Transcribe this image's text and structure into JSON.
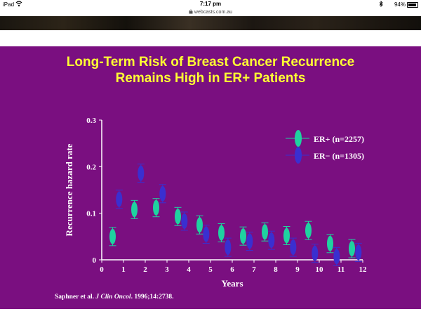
{
  "statusbar": {
    "device": "iPad",
    "time": "7:17 pm",
    "battery": "94%",
    "wifi_icon": "wifi-icon",
    "bluetooth_icon": "bluetooth-icon",
    "battery_icon": "battery-icon"
  },
  "browser": {
    "url": "webcasts.com.au",
    "lock_icon": "lock-icon"
  },
  "slide": {
    "title_line1": "Long-Term Risk of Breast Cancer Recurrence",
    "title_line2": "Remains High in ER+ Patients",
    "citation_prefix": "Saphner et al. ",
    "citation_journal": "J Clin Oncol",
    "citation_suffix": ". 1996;14:2738.",
    "background": "#7a0f80",
    "title_color": "#ffff33"
  },
  "chart_data": {
    "type": "scatter",
    "title": "",
    "xlabel": "Years",
    "ylabel": "Recurrence hazard rate",
    "xlim": [
      0,
      12
    ],
    "ylim": [
      0,
      0.3
    ],
    "xticks": [
      "0",
      "1",
      "2",
      "3",
      "4",
      "5",
      "6",
      "7",
      "8",
      "9",
      "10",
      "11",
      "12"
    ],
    "yticks": [
      "0",
      "0.1",
      "0.2",
      "0.3"
    ],
    "legend_position": "top-right",
    "series": [
      {
        "name": "ER+ (n=2257)",
        "color": "#1fd2a0",
        "x": [
          0.5,
          1.5,
          2.5,
          3.5,
          4.5,
          5.5,
          6.5,
          7.5,
          8.5,
          9.5,
          10.5,
          11.5
        ],
        "values": [
          0.05,
          0.108,
          0.112,
          0.093,
          0.075,
          0.058,
          0.051,
          0.06,
          0.052,
          0.063,
          0.035,
          0.024
        ]
      },
      {
        "name": "ER− (n=1305)",
        "color": "#3a2fd0",
        "x": [
          0.8,
          1.8,
          2.8,
          3.8,
          4.8,
          5.8,
          6.8,
          7.8,
          8.8,
          9.8,
          10.8,
          11.8
        ],
        "values": [
          0.13,
          0.186,
          0.142,
          0.083,
          0.055,
          0.027,
          0.04,
          0.042,
          0.027,
          0.014,
          0.007,
          0.016
        ]
      }
    ]
  }
}
